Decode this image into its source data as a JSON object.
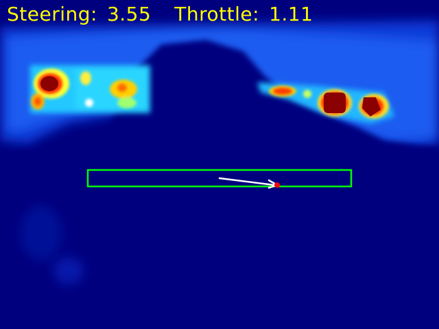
{
  "hud": {
    "steering_label": "Steering:",
    "steering_value": "3.55",
    "throttle_label": "Throttle:",
    "throttle_value": "1.11"
  },
  "colors": {
    "background": "#00007f",
    "hud_text": "#ffff00",
    "roi_box": "#00ff00",
    "steering_vector": "#ffffff",
    "vector_tip": "#ff0000"
  }
}
